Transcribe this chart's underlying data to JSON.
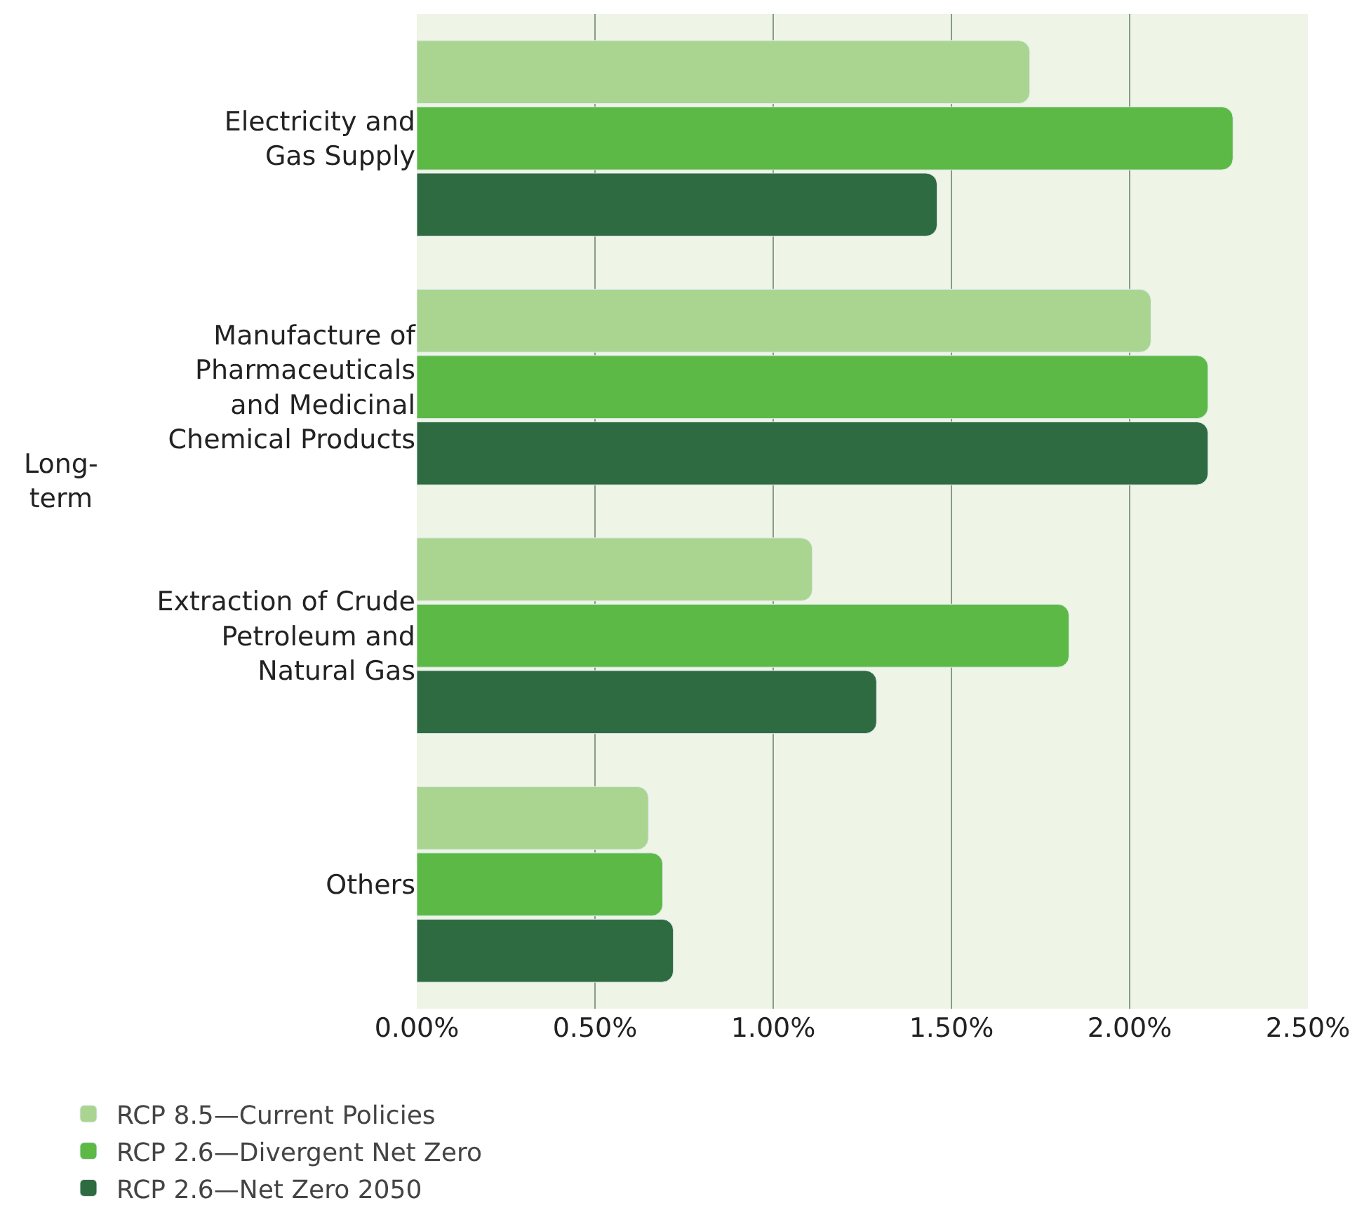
{
  "chart_data": {
    "type": "bar",
    "orientation": "horizontal",
    "categories": [
      "Electricity and\nGas Supply",
      "Manufacture of\nPharmaceuticals\nand Medicinal\nChemical Products",
      "Extraction of Crude\nPetroleum and\nNatural Gas",
      "Others"
    ],
    "series": [
      {
        "name": "RCP 8.5—Current Policies",
        "color": "#aad590",
        "values": [
          1.72,
          2.06,
          1.11,
          0.65
        ]
      },
      {
        "name": "RCP 2.6—Divergent Net Zero",
        "color": "#5cb946",
        "values": [
          2.29,
          2.22,
          1.83,
          0.69
        ]
      },
      {
        "name": "RCP 2.6—Net Zero 2050",
        "color": "#2f6b40",
        "values": [
          1.46,
          2.22,
          1.29,
          0.72
        ]
      }
    ],
    "xlim": [
      0,
      2.5
    ],
    "xticks": [
      {
        "value": 0,
        "label": "0.00%"
      },
      {
        "value": 0.5,
        "label": "0.50%"
      },
      {
        "value": 1,
        "label": "1.00%"
      },
      {
        "value": 1.5,
        "label": "1.50%"
      },
      {
        "value": 2,
        "label": "2.00%"
      },
      {
        "value": 2.5,
        "label": "2.50%"
      }
    ],
    "annotations": [
      "Long-\nterm"
    ],
    "grid": "x",
    "legend": "bottom left"
  }
}
